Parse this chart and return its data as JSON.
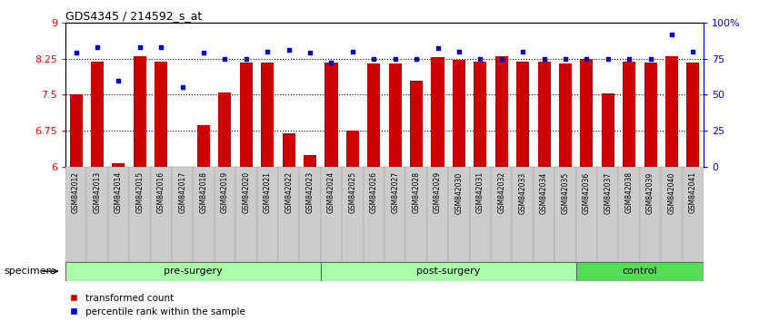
{
  "title": "GDS4345 / 214592_s_at",
  "samples": [
    "GSM842012",
    "GSM842013",
    "GSM842014",
    "GSM842015",
    "GSM842016",
    "GSM842017",
    "GSM842018",
    "GSM842019",
    "GSM842020",
    "GSM842021",
    "GSM842022",
    "GSM842023",
    "GSM842024",
    "GSM842025",
    "GSM842026",
    "GSM842027",
    "GSM842028",
    "GSM842029",
    "GSM842030",
    "GSM842031",
    "GSM842032",
    "GSM842033",
    "GSM842034",
    "GSM842035",
    "GSM842036",
    "GSM842037",
    "GSM842038",
    "GSM842039",
    "GSM842040",
    "GSM842041"
  ],
  "red_values": [
    7.5,
    8.19,
    6.08,
    8.29,
    8.19,
    6.01,
    6.87,
    7.55,
    8.16,
    8.17,
    6.7,
    6.25,
    8.16,
    6.75,
    8.15,
    8.14,
    7.8,
    8.28,
    8.22,
    8.18,
    8.3,
    8.19,
    8.19,
    8.15,
    8.25,
    7.52,
    8.18,
    8.17,
    8.3,
    8.16
  ],
  "blue_percentiles": [
    79,
    83,
    60,
    83,
    83,
    55,
    79,
    75,
    75,
    80,
    81,
    79,
    72,
    80,
    75,
    75,
    75,
    82,
    80,
    75,
    75,
    80,
    75,
    75,
    75,
    75,
    75,
    75,
    92,
    80
  ],
  "groups": [
    {
      "label": "pre-surgery",
      "start": 0,
      "end": 11
    },
    {
      "label": "post-surgery",
      "start": 12,
      "end": 23
    },
    {
      "label": "control",
      "start": 24,
      "end": 29
    }
  ],
  "group_light_color": "#aaffaa",
  "group_dark_color": "#55dd55",
  "ylim_left": [
    6,
    9
  ],
  "ylim_right": [
    0,
    100
  ],
  "yticks_left": [
    6,
    6.75,
    7.5,
    8.25,
    9
  ],
  "ytick_labels_left": [
    "6",
    "6.75",
    "7.5",
    "8.25",
    "9"
  ],
  "yticks_right": [
    0,
    25,
    50,
    75,
    100
  ],
  "ytick_labels_right": [
    "0",
    "25",
    "50",
    "75",
    "100%"
  ],
  "hlines": [
    6.75,
    7.5,
    8.25
  ],
  "bar_color": "#cc0000",
  "dot_color": "#0000cc",
  "background_color": "#ffffff",
  "specimen_label": "specimen",
  "legend_red": "transformed count",
  "legend_blue": "percentile rank within the sample",
  "xlabel_gray": "#d0d0d0",
  "xlabel_gray2": "#bbbbbb"
}
